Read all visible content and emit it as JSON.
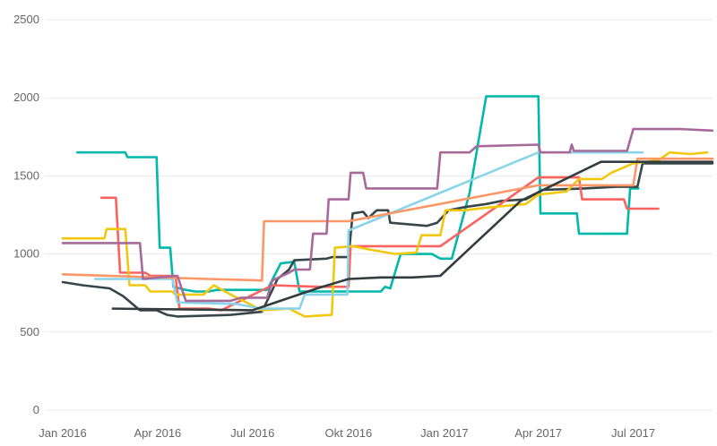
{
  "chart_data": {
    "type": "line",
    "title": "",
    "xlabel": "",
    "ylabel": "",
    "xlim": [
      "2016-01-01",
      "2017-09-15"
    ],
    "ylim": [
      0,
      2500
    ],
    "grid": true,
    "legend": "none",
    "y_ticks": [
      {
        "value": 0,
        "label": "0"
      },
      {
        "value": 500,
        "label": "500"
      },
      {
        "value": 1000,
        "label": "1000"
      },
      {
        "value": 1500,
        "label": "1500"
      },
      {
        "value": 2000,
        "label": "2000"
      },
      {
        "value": 2500,
        "label": "2500"
      }
    ],
    "x_ticks": [
      {
        "value": "2016-01-01",
        "label": "Jan 2016"
      },
      {
        "value": "2016-04-01",
        "label": "Apr 2016"
      },
      {
        "value": "2016-07-01",
        "label": "Jul 2016"
      },
      {
        "value": "2016-10-01",
        "label": "Okt 2016"
      },
      {
        "value": "2017-01-01",
        "label": "Jan 2017"
      },
      {
        "value": "2017-04-01",
        "label": "Apr 2017"
      },
      {
        "value": "2017-07-01",
        "label": "Jul 2017"
      }
    ],
    "series": [
      {
        "color": "#01b8aa",
        "points": [
          [
            "2016-01-15",
            1650
          ],
          [
            "2016-03-01",
            1650
          ],
          [
            "2016-03-03",
            1620
          ],
          [
            "2016-03-31",
            1620
          ],
          [
            "2016-04-03",
            1040
          ],
          [
            "2016-04-13",
            1040
          ],
          [
            "2016-04-16",
            790
          ],
          [
            "2016-04-28",
            770
          ],
          [
            "2016-05-07",
            760
          ],
          [
            "2016-05-20",
            760
          ],
          [
            "2016-05-28",
            770
          ],
          [
            "2016-07-15",
            770
          ],
          [
            "2016-07-28",
            940
          ],
          [
            "2016-08-10",
            950
          ],
          [
            "2016-08-15",
            760
          ],
          [
            "2016-11-01",
            760
          ],
          [
            "2016-11-05",
            790
          ],
          [
            "2016-11-10",
            780
          ],
          [
            "2016-11-20",
            1000
          ],
          [
            "2016-12-20",
            1000
          ],
          [
            "2016-12-28",
            970
          ],
          [
            "2017-01-08",
            970
          ],
          [
            "2017-01-25",
            1390
          ],
          [
            "2017-02-10",
            2010
          ],
          [
            "2017-04-01",
            2010
          ],
          [
            "2017-04-03",
            1260
          ],
          [
            "2017-05-08",
            1260
          ],
          [
            "2017-05-10",
            1130
          ],
          [
            "2017-06-25",
            1130
          ],
          [
            "2017-06-28",
            1420
          ],
          [
            "2017-07-06",
            1420
          ]
        ]
      },
      {
        "color": "#374649",
        "points": [
          [
            "2016-01-01",
            820
          ],
          [
            "2016-01-20",
            800
          ],
          [
            "2016-02-15",
            780
          ],
          [
            "2016-02-28",
            730
          ],
          [
            "2016-03-15",
            640
          ],
          [
            "2016-03-31",
            640
          ],
          [
            "2016-04-10",
            610
          ],
          [
            "2016-04-20",
            600
          ],
          [
            "2016-06-10",
            610
          ],
          [
            "2016-07-10",
            630
          ],
          [
            "2016-07-25",
            840
          ],
          [
            "2016-08-05",
            900
          ],
          [
            "2016-08-10",
            960
          ],
          [
            "2016-09-10",
            970
          ],
          [
            "2016-09-15",
            980
          ],
          [
            "2016-10-01",
            980
          ],
          [
            "2016-10-05",
            1260
          ],
          [
            "2016-10-15",
            1270
          ],
          [
            "2016-10-20",
            1230
          ],
          [
            "2016-10-28",
            1280
          ],
          [
            "2016-11-08",
            1280
          ],
          [
            "2016-11-10",
            1200
          ],
          [
            "2016-12-15",
            1180
          ],
          [
            "2016-12-25",
            1200
          ],
          [
            "2017-01-05",
            1280
          ],
          [
            "2017-01-20",
            1300
          ],
          [
            "2017-02-10",
            1320
          ],
          [
            "2017-02-25",
            1340
          ],
          [
            "2017-03-20",
            1350
          ],
          [
            "2017-04-05",
            1410
          ],
          [
            "2017-05-15",
            1420
          ],
          [
            "2017-06-15",
            1430
          ],
          [
            "2017-07-05",
            1430
          ],
          [
            "2017-07-10",
            1580
          ],
          [
            "2017-09-15",
            1580
          ]
        ]
      },
      {
        "color": "#fd625e",
        "points": [
          [
            "2016-02-07",
            1360
          ],
          [
            "2016-02-21",
            1360
          ],
          [
            "2016-02-25",
            880
          ],
          [
            "2016-03-20",
            880
          ],
          [
            "2016-03-25",
            860
          ],
          [
            "2016-04-18",
            860
          ],
          [
            "2016-04-22",
            650
          ],
          [
            "2016-05-20",
            650
          ],
          [
            "2016-06-01",
            640
          ],
          [
            "2016-07-20",
            800
          ],
          [
            "2016-09-01",
            790
          ],
          [
            "2016-10-01",
            790
          ],
          [
            "2016-10-03",
            1050
          ],
          [
            "2016-12-28",
            1050
          ],
          [
            "2017-04-01",
            1490
          ],
          [
            "2017-05-10",
            1490
          ],
          [
            "2017-05-13",
            1350
          ],
          [
            "2017-06-22",
            1350
          ],
          [
            "2017-06-25",
            1290
          ],
          [
            "2017-07-25",
            1290
          ]
        ]
      },
      {
        "color": "#f2c80f",
        "points": [
          [
            "2016-01-01",
            1100
          ],
          [
            "2016-01-20",
            1100
          ],
          [
            "2016-02-10",
            1100
          ],
          [
            "2016-02-12",
            1160
          ],
          [
            "2016-03-01",
            1160
          ],
          [
            "2016-03-05",
            800
          ],
          [
            "2016-03-20",
            800
          ],
          [
            "2016-03-25",
            760
          ],
          [
            "2016-04-15",
            760
          ],
          [
            "2016-04-18",
            740
          ],
          [
            "2016-05-15",
            740
          ],
          [
            "2016-05-25",
            800
          ],
          [
            "2016-06-10",
            740
          ],
          [
            "2016-07-10",
            640
          ],
          [
            "2016-08-05",
            650
          ],
          [
            "2016-08-20",
            600
          ],
          [
            "2016-09-15",
            610
          ],
          [
            "2016-09-18",
            1040
          ],
          [
            "2016-10-05",
            1050
          ],
          [
            "2016-10-20",
            1030
          ],
          [
            "2016-11-15",
            1000
          ],
          [
            "2016-12-05",
            1010
          ],
          [
            "2016-12-10",
            1120
          ],
          [
            "2016-12-28",
            1120
          ],
          [
            "2017-01-02",
            1280
          ],
          [
            "2017-01-20",
            1280
          ],
          [
            "2017-02-15",
            1300
          ],
          [
            "2017-03-20",
            1320
          ],
          [
            "2017-04-01",
            1380
          ],
          [
            "2017-04-28",
            1400
          ],
          [
            "2017-05-10",
            1480
          ],
          [
            "2017-06-01",
            1480
          ],
          [
            "2017-06-10",
            1520
          ],
          [
            "2017-07-01",
            1580
          ],
          [
            "2017-07-25",
            1600
          ],
          [
            "2017-08-05",
            1650
          ],
          [
            "2017-08-25",
            1640
          ],
          [
            "2017-09-10",
            1650
          ]
        ]
      },
      {
        "color": "#8ad4eb",
        "points": [
          [
            "2016-02-01",
            840
          ],
          [
            "2016-04-15",
            840
          ],
          [
            "2016-04-20",
            690
          ],
          [
            "2016-06-15",
            680
          ],
          [
            "2016-07-10",
            650
          ],
          [
            "2016-08-15",
            650
          ],
          [
            "2016-08-20",
            740
          ],
          [
            "2016-09-30",
            740
          ],
          [
            "2016-10-01",
            1150
          ],
          [
            "2017-04-01",
            1650
          ],
          [
            "2017-07-10",
            1650
          ]
        ]
      },
      {
        "color": "#fe9666",
        "points": [
          [
            "2016-01-01",
            870
          ],
          [
            "2016-05-20",
            840
          ],
          [
            "2016-07-10",
            830
          ],
          [
            "2016-07-12",
            1210
          ],
          [
            "2016-10-01",
            1210
          ],
          [
            "2017-04-01",
            1440
          ],
          [
            "2017-07-01",
            1440
          ],
          [
            "2017-07-05",
            1610
          ],
          [
            "2017-09-15",
            1610
          ]
        ]
      },
      {
        "color": "#a66999",
        "points": [
          [
            "2016-01-01",
            1070
          ],
          [
            "2016-03-15",
            1070
          ],
          [
            "2016-03-18",
            840
          ],
          [
            "2016-04-20",
            860
          ],
          [
            "2016-04-28",
            700
          ],
          [
            "2016-06-10",
            700
          ],
          [
            "2016-06-20",
            720
          ],
          [
            "2016-07-15",
            720
          ],
          [
            "2016-07-20",
            830
          ],
          [
            "2016-08-05",
            880
          ],
          [
            "2016-08-10",
            900
          ],
          [
            "2016-08-25",
            900
          ],
          [
            "2016-08-28",
            1130
          ],
          [
            "2016-09-10",
            1130
          ],
          [
            "2016-09-12",
            1350
          ],
          [
            "2016-10-01",
            1350
          ],
          [
            "2016-10-03",
            1520
          ],
          [
            "2016-10-15",
            1520
          ],
          [
            "2016-10-18",
            1420
          ],
          [
            "2016-12-25",
            1420
          ],
          [
            "2016-12-28",
            1650
          ],
          [
            "2017-01-25",
            1650
          ],
          [
            "2017-02-01",
            1690
          ],
          [
            "2017-04-01",
            1700
          ],
          [
            "2017-04-03",
            1650
          ],
          [
            "2017-05-01",
            1650
          ],
          [
            "2017-05-03",
            1700
          ],
          [
            "2017-05-05",
            1660
          ],
          [
            "2017-06-25",
            1660
          ],
          [
            "2017-07-01",
            1800
          ],
          [
            "2017-08-15",
            1800
          ],
          [
            "2017-09-15",
            1790
          ]
        ]
      },
      {
        "color": "#333c3f",
        "points": [
          [
            "2016-02-18",
            650
          ],
          [
            "2016-07-01",
            640
          ],
          [
            "2016-09-01",
            780
          ],
          [
            "2016-10-01",
            840
          ],
          [
            "2016-11-01",
            850
          ],
          [
            "2016-12-01",
            850
          ],
          [
            "2016-12-28",
            860
          ],
          [
            "2017-03-15",
            1340
          ],
          [
            "2017-05-31",
            1590
          ],
          [
            "2017-09-15",
            1590
          ]
        ]
      }
    ]
  }
}
